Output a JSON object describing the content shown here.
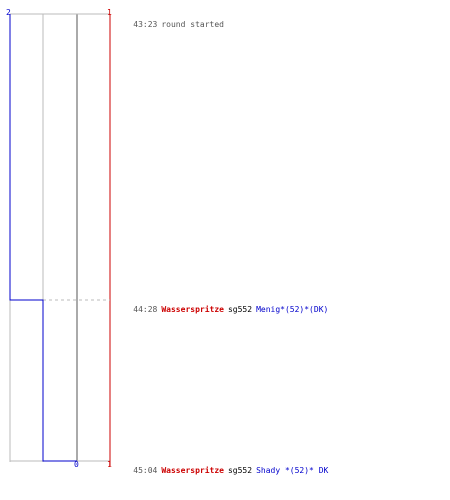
{
  "axes": {
    "top_left_score": "2",
    "top_right_score": "1",
    "bottom_mid_score": "0",
    "bottom_right_score": "1"
  },
  "events": [
    {
      "time": "43:23",
      "parts": [
        {
          "text": "round started",
          "color": "#555555"
        }
      ]
    },
    {
      "time": "44:28",
      "parts": [
        {
          "text": "Wasserspritze",
          "color": "#cc0000"
        },
        {
          "text": "sg552",
          "color": "#000000"
        },
        {
          "text": "Menig*(52)*(DK)",
          "color": "#0000cc"
        }
      ]
    },
    {
      "time": "45:04",
      "parts": [
        {
          "text": "Wasserspritze",
          "color": "#cc0000"
        },
        {
          "text": "sg552",
          "color": "#000000"
        },
        {
          "text": "Shady *(52)* DK",
          "color": "#0000cc"
        }
      ]
    }
  ],
  "colors": {
    "team_blue": "#0000cc",
    "team_red": "#cc0000",
    "grid": "#bbbbbb",
    "time": "#555555"
  }
}
